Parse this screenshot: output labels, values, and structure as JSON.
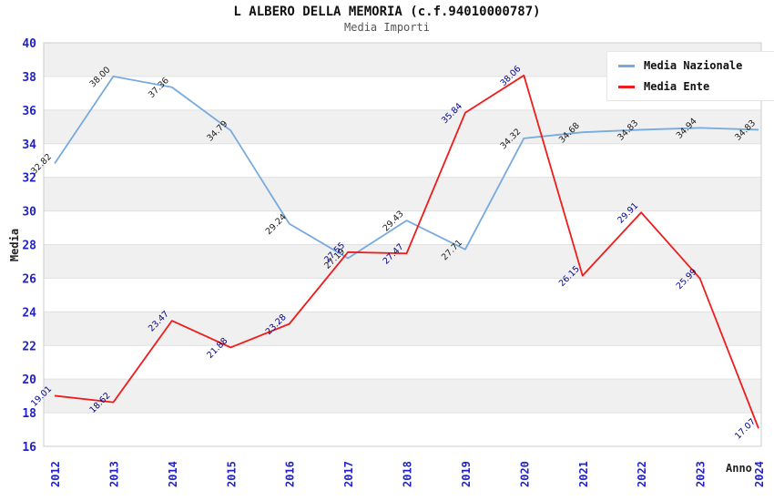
{
  "title": "L ALBERO DELLA MEMORIA (c.f.94010000787)",
  "subtitle": "Media Importi",
  "chart_data": {
    "type": "line",
    "x": [
      "2012",
      "2013",
      "2014",
      "2015",
      "2016",
      "2017",
      "2018",
      "2019",
      "2020",
      "2021",
      "2022",
      "2023",
      "2024"
    ],
    "series": [
      {
        "name": "Media Nazionale",
        "color": "#77AADD",
        "label_color": "#1a1a1a",
        "values": [
          32.82,
          38.0,
          37.36,
          34.79,
          29.24,
          27.19,
          29.43,
          27.71,
          34.32,
          34.68,
          34.83,
          34.94,
          34.83
        ],
        "labels": [
          "32.82",
          "38.00",
          "37.36",
          "34.79",
          "29.24",
          "27.19",
          "29.43",
          "27.71",
          "34.32",
          "34.68",
          "34.83",
          "34.94",
          "34.83"
        ]
      },
      {
        "name": "Media Ente",
        "color": "#EE1C1C",
        "label_color": "#00008B",
        "values": [
          19.01,
          18.62,
          23.47,
          21.88,
          23.28,
          27.55,
          27.47,
          35.84,
          38.06,
          26.15,
          29.91,
          25.99,
          17.07
        ],
        "labels": [
          "19.01",
          "18.62",
          "23.47",
          "21.88",
          "23.28",
          "27.55",
          "27.47",
          "35.84",
          "38.06",
          "26.15",
          "29.91",
          "25.99",
          "17.07"
        ]
      }
    ],
    "xlabel": "Anno",
    "ylabel": "Media",
    "ylim": [
      16,
      40
    ],
    "yticks": [
      16,
      18,
      20,
      22,
      24,
      26,
      28,
      30,
      32,
      34,
      36,
      38,
      40
    ],
    "grid": "horizontal-banded",
    "legend_position": "top-right",
    "tick_label_color": "#2222CC",
    "band_color": "#F0F0F0",
    "gridline_color": "#E0E0E0",
    "plot_border_color": "#CCCCCC"
  }
}
